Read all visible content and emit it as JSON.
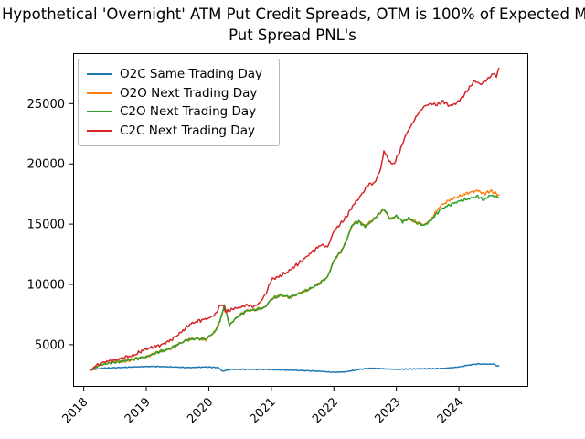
{
  "chart": {
    "title_line1": "Hypothetical 'Overnight' ATM Put Credit Spreads, OTM is 100% of Expected M",
    "title_line2": "Put Spread PNL's"
  },
  "chart_data": {
    "type": "line",
    "title": "Hypothetical 'Overnight' ATM Put Credit Spreads, OTM is 100% of Expected M / Put Spread PNL's",
    "xlabel": "",
    "ylabel": "",
    "grid": false,
    "legend_position": "upper left",
    "x_ticks": [
      2018,
      2019,
      2020,
      2021,
      2022,
      2023,
      2024
    ],
    "x_tick_labels": [
      "2018",
      "2019",
      "2020",
      "2021",
      "2022",
      "2023",
      "2024"
    ],
    "y_ticks": [
      5000,
      10000,
      15000,
      20000,
      25000
    ],
    "y_tick_labels": [
      "5000",
      "10000",
      "15000",
      "20000",
      "25000"
    ],
    "xlim": [
      2017.83,
      2025.11
    ],
    "ylim": [
      1500,
      29200
    ],
    "x_units": "year",
    "y_units": "PNL",
    "series": [
      {
        "name": "O2C Same Trading Day",
        "color": "#1f77b4",
        "points": [
          [
            2018.12,
            2900
          ],
          [
            2018.3,
            3050
          ],
          [
            2018.55,
            3100
          ],
          [
            2018.8,
            3150
          ],
          [
            2019.1,
            3200
          ],
          [
            2019.4,
            3150
          ],
          [
            2019.7,
            3100
          ],
          [
            2019.95,
            3150
          ],
          [
            2020.15,
            3100
          ],
          [
            2020.22,
            2800
          ],
          [
            2020.35,
            2950
          ],
          [
            2020.6,
            2950
          ],
          [
            2020.9,
            2950
          ],
          [
            2021.2,
            2900
          ],
          [
            2021.5,
            2850
          ],
          [
            2021.8,
            2780
          ],
          [
            2022.0,
            2700
          ],
          [
            2022.2,
            2750
          ],
          [
            2022.4,
            2950
          ],
          [
            2022.6,
            3050
          ],
          [
            2022.8,
            3000
          ],
          [
            2023.0,
            2950
          ],
          [
            2023.2,
            2980
          ],
          [
            2023.4,
            3000
          ],
          [
            2023.6,
            3000
          ],
          [
            2023.8,
            3050
          ],
          [
            2024.0,
            3150
          ],
          [
            2024.15,
            3300
          ],
          [
            2024.3,
            3400
          ],
          [
            2024.45,
            3380
          ],
          [
            2024.55,
            3400
          ],
          [
            2024.62,
            3200
          ],
          [
            2024.64,
            3250
          ]
        ]
      },
      {
        "name": "O2O Next Trading Day",
        "color": "#ff7f0e",
        "points": [
          [
            2018.12,
            2880
          ],
          [
            2018.25,
            3280
          ],
          [
            2018.45,
            3520
          ],
          [
            2018.65,
            3630
          ],
          [
            2018.85,
            3870
          ],
          [
            2019.0,
            3980
          ],
          [
            2019.2,
            4420
          ],
          [
            2019.35,
            4580
          ],
          [
            2019.5,
            5020
          ],
          [
            2019.65,
            5380
          ],
          [
            2019.8,
            5520
          ],
          [
            2019.95,
            5430
          ],
          [
            2020.1,
            6080
          ],
          [
            2020.18,
            6950
          ],
          [
            2020.25,
            8250
          ],
          [
            2020.33,
            6650
          ],
          [
            2020.45,
            7280
          ],
          [
            2020.6,
            7820
          ],
          [
            2020.75,
            7880
          ],
          [
            2020.9,
            8120
          ],
          [
            2021.0,
            8750
          ],
          [
            2021.15,
            9150
          ],
          [
            2021.3,
            8900
          ],
          [
            2021.45,
            9300
          ],
          [
            2021.6,
            9550
          ],
          [
            2021.75,
            10050
          ],
          [
            2021.9,
            10650
          ],
          [
            2022.0,
            11950
          ],
          [
            2022.15,
            13050
          ],
          [
            2022.3,
            14950
          ],
          [
            2022.4,
            15250
          ],
          [
            2022.5,
            14850
          ],
          [
            2022.62,
            15350
          ],
          [
            2022.8,
            16200
          ],
          [
            2022.9,
            15450
          ],
          [
            2023.0,
            15650
          ],
          [
            2023.1,
            15250
          ],
          [
            2023.2,
            15450
          ],
          [
            2023.32,
            15150
          ],
          [
            2023.45,
            14950
          ],
          [
            2023.55,
            15400
          ],
          [
            2023.7,
            16500
          ],
          [
            2023.85,
            17000
          ],
          [
            2024.0,
            17300
          ],
          [
            2024.15,
            17600
          ],
          [
            2024.3,
            17800
          ],
          [
            2024.4,
            17500
          ],
          [
            2024.5,
            17750
          ],
          [
            2024.58,
            17600
          ],
          [
            2024.64,
            17400
          ]
        ]
      },
      {
        "name": "C2O Next Trading Day",
        "color": "#2ca02c",
        "points": [
          [
            2018.12,
            2900
          ],
          [
            2018.25,
            3300
          ],
          [
            2018.45,
            3500
          ],
          [
            2018.65,
            3650
          ],
          [
            2018.85,
            3850
          ],
          [
            2019.0,
            4000
          ],
          [
            2019.2,
            4400
          ],
          [
            2019.35,
            4600
          ],
          [
            2019.5,
            5000
          ],
          [
            2019.65,
            5400
          ],
          [
            2019.8,
            5500
          ],
          [
            2019.95,
            5450
          ],
          [
            2020.1,
            6100
          ],
          [
            2020.18,
            7000
          ],
          [
            2020.25,
            8300
          ],
          [
            2020.33,
            6600
          ],
          [
            2020.45,
            7300
          ],
          [
            2020.6,
            7800
          ],
          [
            2020.75,
            7900
          ],
          [
            2020.9,
            8100
          ],
          [
            2021.0,
            8800
          ],
          [
            2021.15,
            9100
          ],
          [
            2021.3,
            8950
          ],
          [
            2021.45,
            9250
          ],
          [
            2021.6,
            9600
          ],
          [
            2021.75,
            10000
          ],
          [
            2021.9,
            10600
          ],
          [
            2022.0,
            12000
          ],
          [
            2022.15,
            13000
          ],
          [
            2022.3,
            15000
          ],
          [
            2022.4,
            15200
          ],
          [
            2022.5,
            14800
          ],
          [
            2022.62,
            15300
          ],
          [
            2022.8,
            16300
          ],
          [
            2022.9,
            15400
          ],
          [
            2023.0,
            15700
          ],
          [
            2023.1,
            15200
          ],
          [
            2023.2,
            15500
          ],
          [
            2023.32,
            15100
          ],
          [
            2023.45,
            14900
          ],
          [
            2023.55,
            15300
          ],
          [
            2023.7,
            16200
          ],
          [
            2023.85,
            16600
          ],
          [
            2024.0,
            16900
          ],
          [
            2024.15,
            17100
          ],
          [
            2024.3,
            17300
          ],
          [
            2024.4,
            17000
          ],
          [
            2024.5,
            17400
          ],
          [
            2024.58,
            17300
          ],
          [
            2024.64,
            17200
          ]
        ]
      },
      {
        "name": "C2C Next Trading Day",
        "color": "#d62728",
        "points": [
          [
            2018.12,
            2900
          ],
          [
            2018.2,
            3300
          ],
          [
            2018.35,
            3600
          ],
          [
            2018.5,
            3700
          ],
          [
            2018.65,
            3950
          ],
          [
            2018.8,
            4100
          ],
          [
            2018.95,
            4550
          ],
          [
            2019.1,
            4800
          ],
          [
            2019.25,
            5000
          ],
          [
            2019.4,
            5400
          ],
          [
            2019.55,
            6000
          ],
          [
            2019.7,
            6700
          ],
          [
            2019.85,
            7000
          ],
          [
            2020.0,
            7200
          ],
          [
            2020.1,
            7500
          ],
          [
            2020.2,
            8400
          ],
          [
            2020.28,
            7700
          ],
          [
            2020.4,
            8000
          ],
          [
            2020.5,
            8100
          ],
          [
            2020.62,
            8300
          ],
          [
            2020.72,
            8150
          ],
          [
            2020.82,
            8500
          ],
          [
            2020.92,
            9300
          ],
          [
            2021.0,
            10400
          ],
          [
            2021.1,
            10600
          ],
          [
            2021.25,
            11000
          ],
          [
            2021.4,
            11600
          ],
          [
            2021.5,
            12000
          ],
          [
            2021.65,
            12700
          ],
          [
            2021.8,
            13300
          ],
          [
            2021.9,
            13100
          ],
          [
            2022.0,
            14400
          ],
          [
            2022.1,
            15000
          ],
          [
            2022.2,
            15600
          ],
          [
            2022.3,
            16500
          ],
          [
            2022.45,
            17500
          ],
          [
            2022.55,
            18300
          ],
          [
            2022.65,
            18400
          ],
          [
            2022.75,
            19600
          ],
          [
            2022.8,
            21100
          ],
          [
            2022.88,
            20300
          ],
          [
            2022.95,
            19900
          ],
          [
            2023.05,
            21000
          ],
          [
            2023.15,
            22400
          ],
          [
            2023.25,
            23300
          ],
          [
            2023.35,
            24200
          ],
          [
            2023.45,
            24800
          ],
          [
            2023.55,
            25000
          ],
          [
            2023.65,
            24900
          ],
          [
            2023.75,
            25200
          ],
          [
            2023.85,
            24800
          ],
          [
            2023.95,
            25000
          ],
          [
            2024.05,
            25500
          ],
          [
            2024.15,
            26200
          ],
          [
            2024.25,
            26900
          ],
          [
            2024.35,
            26600
          ],
          [
            2024.45,
            27000
          ],
          [
            2024.55,
            27500
          ],
          [
            2024.6,
            27300
          ],
          [
            2024.64,
            27950
          ]
        ]
      }
    ]
  }
}
